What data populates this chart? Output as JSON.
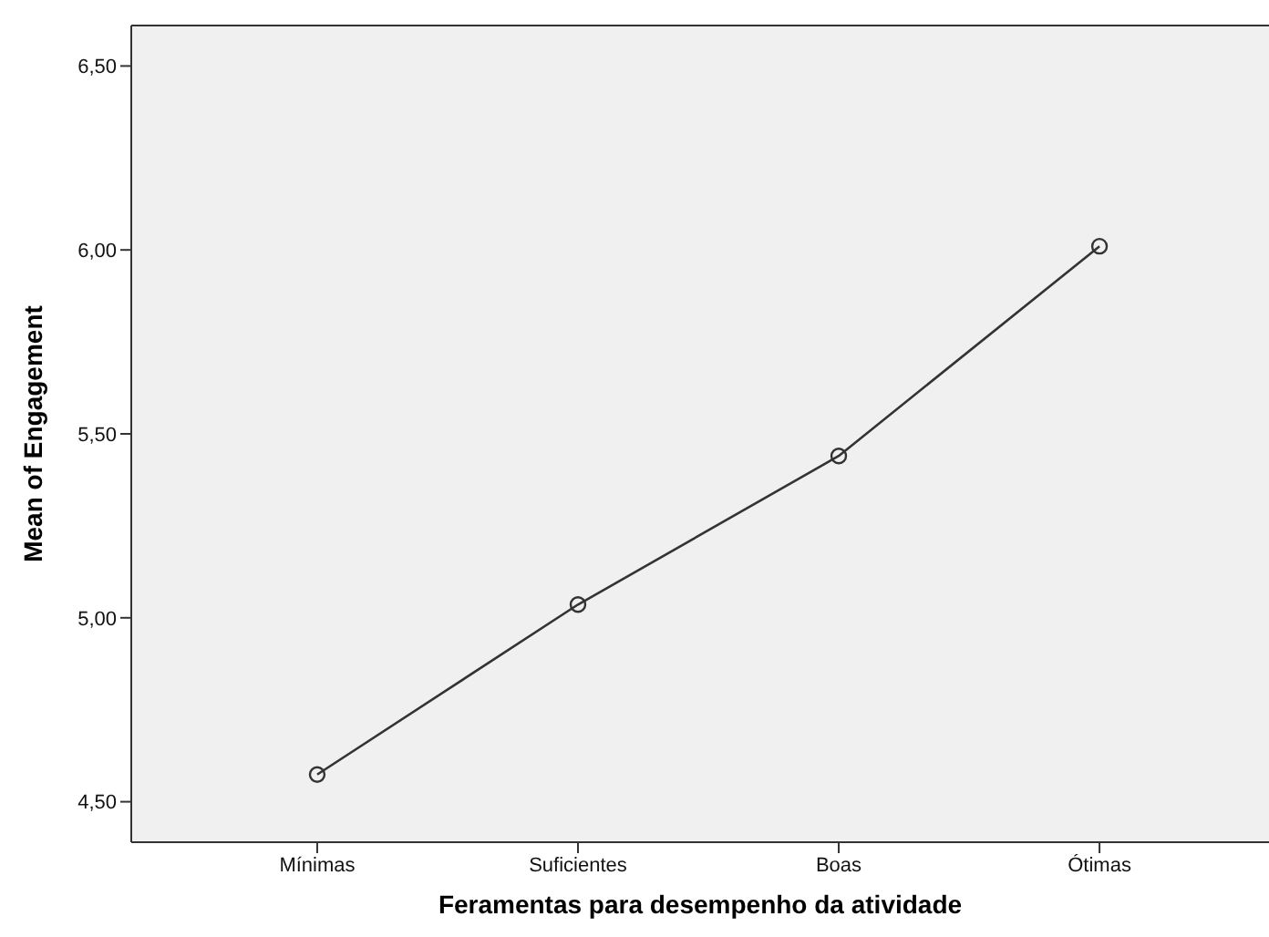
{
  "chart_data": {
    "type": "line",
    "xlabel": "Feramentas para desempenho da atividade",
    "ylabel": "Mean of Engagement",
    "categories": [
      "Mínimas",
      "Suficientes",
      "Boas",
      "Ótimas"
    ],
    "series": [
      {
        "color": "#333333",
        "values": [
          4.574,
          5.036,
          5.44,
          6.01
        ]
      }
    ],
    "ylim": [
      4.39,
      6.61
    ],
    "yticks": [
      {
        "value": 4.5,
        "label": "4,50"
      },
      {
        "value": 5,
        "label": "5,00"
      },
      {
        "value": 5.5,
        "label": "5,50"
      },
      {
        "value": 6,
        "label": "6,00"
      },
      {
        "value": 6.5,
        "label": "6,50"
      }
    ],
    "grid": false,
    "legend": false,
    "marker": "circle",
    "line_style": "solid"
  }
}
